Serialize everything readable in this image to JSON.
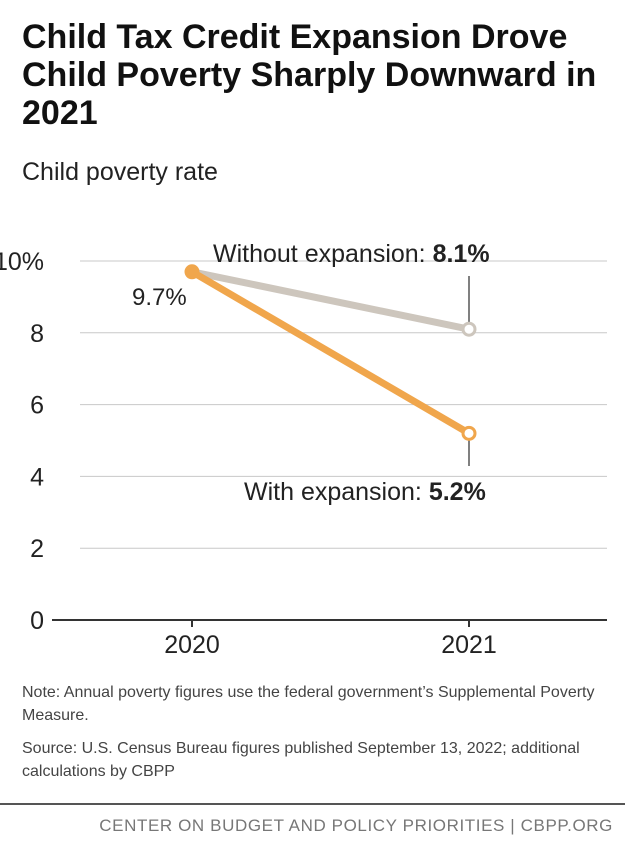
{
  "title": "Child Tax Credit Expansion Drove Child Poverty Sharply Downward in 2021",
  "subtitle": "Child poverty rate",
  "chart_data": {
    "type": "line",
    "categories": [
      "2020",
      "2021"
    ],
    "series": [
      {
        "name": "Without expansion",
        "values": [
          9.7,
          8.1
        ],
        "color": "#cdc6bd"
      },
      {
        "name": "With expansion",
        "values": [
          9.7,
          5.2
        ],
        "color": "#f0a64c"
      }
    ],
    "ylim": [
      0,
      10
    ],
    "yticks": [
      "0",
      "2",
      "4",
      "6",
      "8",
      "10%"
    ],
    "ytick_values": [
      0,
      2,
      4,
      6,
      8,
      10
    ],
    "grid": true,
    "annotations": {
      "start_label": "9.7%",
      "without_label": "Without expansion: ",
      "without_value": "8.1%",
      "with_label": "With expansion: ",
      "with_value": "5.2%"
    }
  },
  "note": "Note: Annual poverty figures use the federal government’s Supplemental Poverty Measure.",
  "source": "Source: U.S. Census Bureau figures published September 13, 2022; additional calculations by CBPP",
  "footer": "CENTER ON BUDGET AND POLICY PRIORITIES | CBPP.ORG"
}
